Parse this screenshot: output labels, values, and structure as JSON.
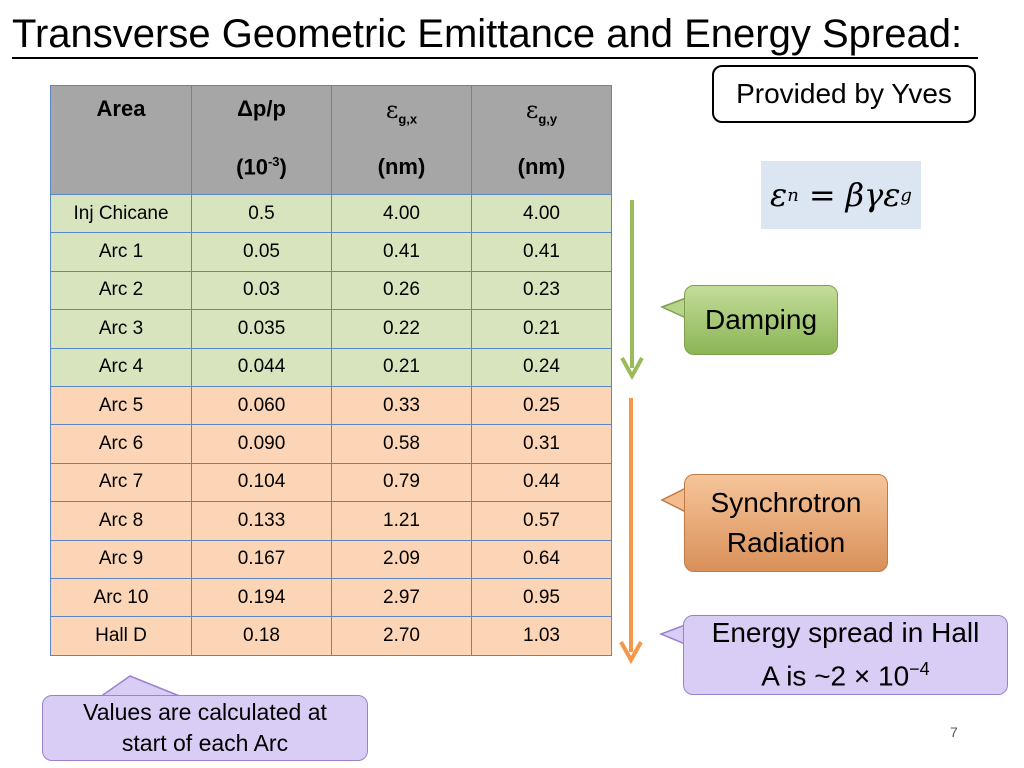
{
  "title": "Transverse Geometric Emittance and Energy Spread:",
  "provided_by": "Provided by Yves",
  "table": {
    "headers": [
      {
        "label": "Area",
        "unit": ""
      },
      {
        "label": "Δp/p",
        "unit_base": "(10",
        "unit_exp": "-3",
        "unit_close": ")"
      },
      {
        "symbol": "ε",
        "sub": "g,x",
        "unit": "(nm)"
      },
      {
        "symbol": "ε",
        "sub": "g,y",
        "unit": "(nm)"
      }
    ],
    "rows": [
      {
        "area": "Inj Chicane",
        "dpp": "0.5",
        "egx": "4.00",
        "egy": "4.00",
        "group": "damping"
      },
      {
        "area": "Arc 1",
        "dpp": "0.05",
        "egx": "0.41",
        "egy": "0.41",
        "group": "damping"
      },
      {
        "area": "Arc 2",
        "dpp": "0.03",
        "egx": "0.26",
        "egy": "0.23",
        "group": "damping"
      },
      {
        "area": "Arc 3",
        "dpp": "0.035",
        "egx": "0.22",
        "egy": "0.21",
        "group": "damping"
      },
      {
        "area": "Arc 4",
        "dpp": "0.044",
        "egx": "0.21",
        "egy": "0.24",
        "group": "damping"
      },
      {
        "area": "Arc 5",
        "dpp": "0.060",
        "egx": "0.33",
        "egy": "0.25",
        "group": "synchrotron"
      },
      {
        "area": "Arc 6",
        "dpp": "0.090",
        "egx": "0.58",
        "egy": "0.31",
        "group": "synchrotron"
      },
      {
        "area": "Arc 7",
        "dpp": "0.104",
        "egx": "0.79",
        "egy": "0.44",
        "group": "synchrotron"
      },
      {
        "area": "Arc 8",
        "dpp": "0.133",
        "egx": "1.21",
        "egy": "0.57",
        "group": "synchrotron"
      },
      {
        "area": "Arc 9",
        "dpp": "0.167",
        "egx": "2.09",
        "egy": "0.64",
        "group": "synchrotron"
      },
      {
        "area": "Arc 10",
        "dpp": "0.194",
        "egx": "2.97",
        "egy": "0.95",
        "group": "synchrotron"
      },
      {
        "area": "Hall D",
        "dpp": "0.18",
        "egx": "2.70",
        "egy": "1.03",
        "group": "synchrotron"
      }
    ]
  },
  "formula": {
    "lhs": "ε",
    "lhs_sub": "n",
    "equals": "=",
    "rhs": "βγε",
    "rhs_sub": "g"
  },
  "callouts": {
    "damping": "Damping",
    "synchrotron_line1": "Synchrotron",
    "synchrotron_line2": "Radiation",
    "energy_line1": "Energy spread in Hall",
    "energy_line2": "A is ~2 × 10",
    "energy_exp": "−4"
  },
  "note": {
    "line1": "Values are calculated at",
    "line2": "start of each Arc"
  },
  "page_number": "7",
  "colors": {
    "header_gray": "#a6a6a6",
    "damping_green": "#d7e4bd",
    "synchrotron_orange": "#fbd5b5",
    "grid_blue": "#5b87c4",
    "callout_purple": "#d9ccf5",
    "arrow_green": "#9bbb59",
    "arrow_orange": "#f79646"
  }
}
